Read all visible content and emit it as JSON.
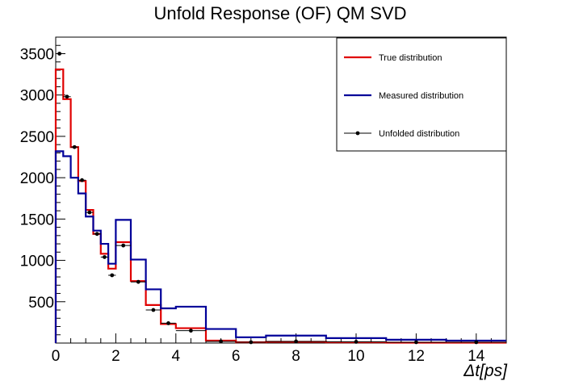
{
  "chart_data": {
    "type": "histogram",
    "title": "Unfold Response (OF) QM SVD",
    "xlabel": "Δt[ps]",
    "ylabel": "",
    "xlim": [
      0,
      15
    ],
    "ylim": [
      0,
      3700
    ],
    "x_ticks": [
      0,
      2,
      4,
      6,
      8,
      10,
      12,
      14
    ],
    "x_tick_labels": [
      "0",
      "2",
      "4",
      "6",
      "8",
      "10",
      "12",
      "14"
    ],
    "y_ticks": [
      500,
      1000,
      1500,
      2000,
      2500,
      3000,
      3500
    ],
    "y_tick_labels": [
      "500",
      "1000",
      "1500",
      "2000",
      "2500",
      "3000",
      "3500"
    ],
    "grid": false,
    "legend_position": "top-right",
    "legend": [
      "True distribution",
      "Measured distribution",
      "Unfolded distribution"
    ],
    "bin_edges": [
      0,
      0.25,
      0.5,
      0.75,
      1.0,
      1.25,
      1.5,
      1.75,
      2.0,
      2.5,
      3.0,
      3.5,
      4.0,
      5.0,
      6.0,
      7.0,
      9.0,
      11.0,
      13.0,
      15.0
    ],
    "series": [
      {
        "name": "True distribution",
        "style": "step",
        "color": "#e00000",
        "values": [
          3310,
          2950,
          2370,
          1960,
          1610,
          1320,
          1080,
          900,
          1220,
          750,
          460,
          230,
          180,
          30,
          10,
          15,
          10,
          5,
          5
        ]
      },
      {
        "name": "Measured distribution",
        "style": "step",
        "color": "#000099",
        "values": [
          2320,
          2260,
          2000,
          1810,
          1530,
          1360,
          1200,
          960,
          1490,
          1010,
          650,
          420,
          440,
          170,
          70,
          90,
          60,
          40,
          30
        ]
      },
      {
        "name": "Unfolded distribution",
        "style": "points",
        "color": "#000000",
        "values": [
          3500,
          2980,
          2370,
          1970,
          1580,
          1320,
          1040,
          820,
          1180,
          740,
          400,
          240,
          150,
          20,
          10,
          20,
          15,
          10,
          10
        ]
      }
    ]
  }
}
